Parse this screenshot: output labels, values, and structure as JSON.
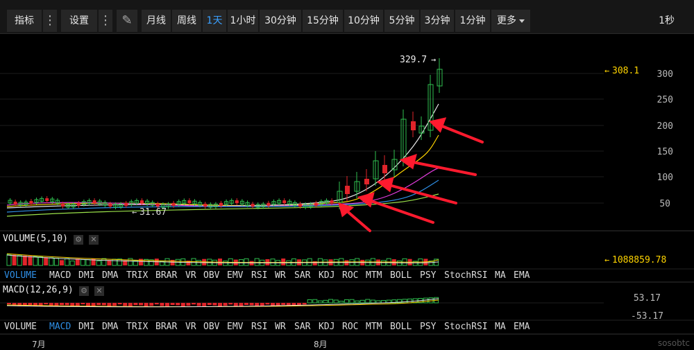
{
  "toolbar": {
    "indicators": "指标",
    "settings": "设置",
    "periods": [
      "月线",
      "周线",
      "1天",
      "1小时",
      "30分钟",
      "15分钟",
      "10分钟",
      "5分钟",
      "3分钟",
      "1分钟"
    ],
    "more": "更多",
    "refresh": "1秒"
  },
  "main_chart": {
    "y_ticks": [
      "300",
      "250",
      "200",
      "150",
      "100",
      "50"
    ],
    "high_label": "329.7",
    "low_label": "31.67",
    "price_label": "308.1"
  },
  "volume_panel": {
    "title": "VOLUME(5,10)",
    "value_label": "1088859.78"
  },
  "macd_panel": {
    "title": "MACD(12,26,9)",
    "upper_label": "53.17",
    "lower_label": "-53.17"
  },
  "indicator_tabs": [
    "VOLUME",
    "MACD",
    "DMI",
    "DMA",
    "TRIX",
    "BRAR",
    "VR",
    "OBV",
    "EMV",
    "RSI",
    "WR",
    "SAR",
    "KDJ",
    "ROC",
    "MTM",
    "BOLL",
    "PSY",
    "StochRSI",
    "MA",
    "EMA"
  ],
  "x_axis": {
    "months": [
      "7月",
      "8月"
    ]
  },
  "watermark": "sosobtc",
  "colors": {
    "up": "#2fbf4f",
    "down": "#e0242a",
    "highlight": "#ffd400",
    "accent": "#2f8fe6",
    "annotation": "#ff1a2e"
  },
  "chart_data": {
    "type": "candlestick",
    "y_range": [
      0,
      340
    ],
    "annotations": [
      "329.7 high",
      "31.67 low",
      "308.1 last"
    ]
  }
}
